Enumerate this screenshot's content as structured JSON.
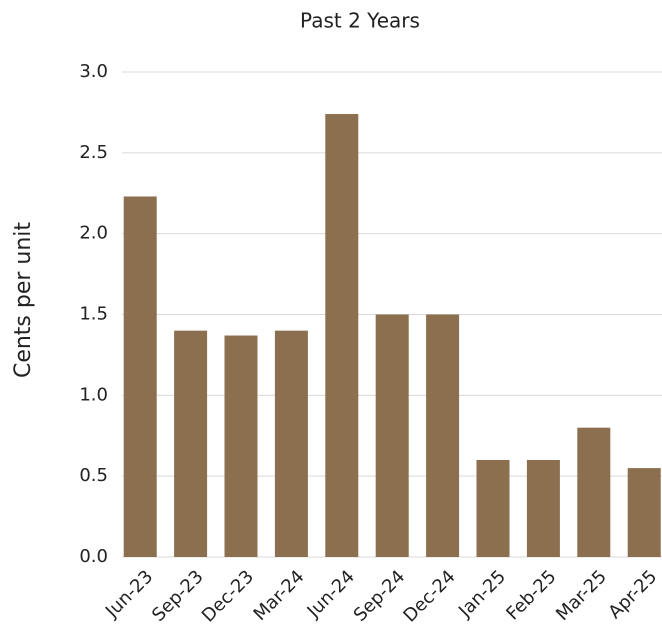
{
  "chart_data": {
    "type": "bar",
    "title": "Past 2 Years",
    "y_label": "Cents per unit",
    "categories": [
      "Jun-23",
      "Sep-23",
      "Dec-23",
      "Mar-24",
      "Jun-24",
      "Sep-24",
      "Dec-24",
      "Jan-25",
      "Feb-25",
      "Mar-25",
      "Apr-25"
    ],
    "values": [
      2.23,
      1.4,
      1.37,
      1.4,
      2.74,
      1.5,
      1.5,
      0.6,
      0.6,
      0.8,
      0.55
    ],
    "color": "#8b6f4e",
    "ylim": [
      0,
      3
    ],
    "yticks": [
      {
        "value": 0,
        "label": "0.0"
      },
      0.5,
      {
        "value": 1,
        "label": "1.0"
      },
      1.5,
      {
        "value": 2,
        "label": "2.0"
      },
      2.5,
      {
        "value": 3,
        "label": "3.0"
      }
    ],
    "grid": true
  }
}
